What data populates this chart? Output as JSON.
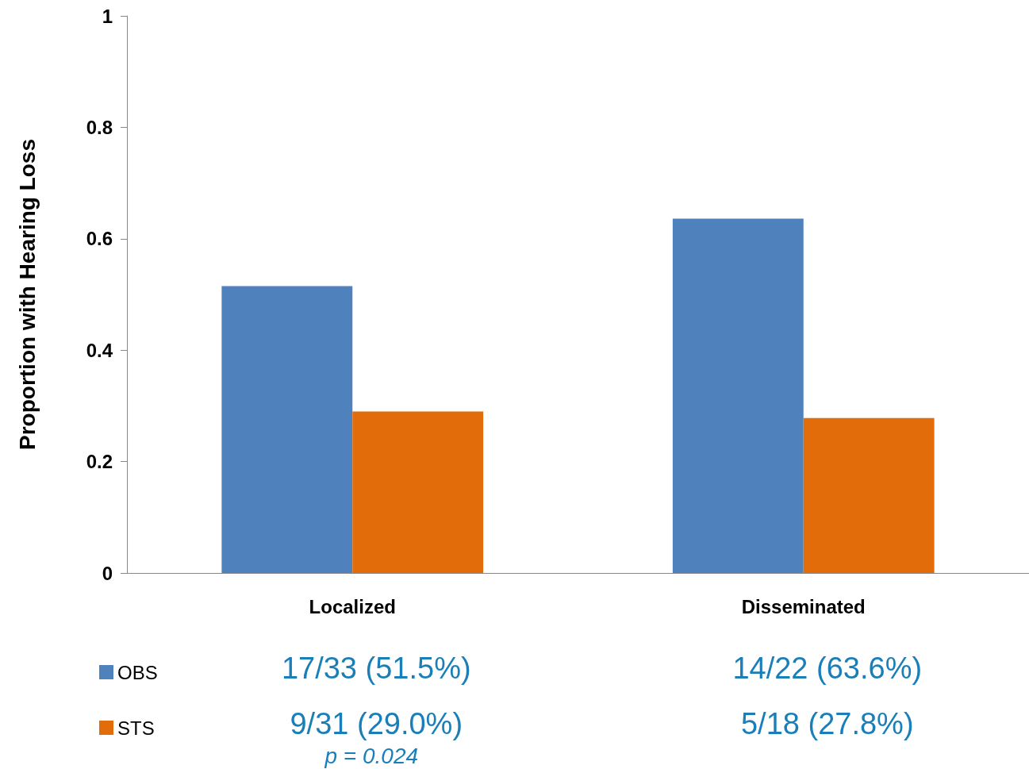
{
  "chart_data": {
    "type": "bar",
    "ylabel": "Proportion with Hearing Loss",
    "categories": [
      "Localized",
      "Disseminated"
    ],
    "series": [
      {
        "name": "OBS",
        "color": "#4f81bd",
        "values": [
          0.515,
          0.636
        ],
        "value_labels": [
          "17/33 (51.5%)",
          "14/22 (63.6%)"
        ]
      },
      {
        "name": "STS",
        "color": "#e36c0a",
        "values": [
          0.29,
          0.278
        ],
        "value_labels": [
          "9/31 (29.0%)",
          "5/18 (27.8%)"
        ]
      }
    ],
    "ylim": [
      0,
      1
    ],
    "yticks": [
      0,
      0.2,
      0.4,
      0.6,
      0.8,
      1
    ],
    "grid": false,
    "legend": "bottom left",
    "annotations": [
      "p = 0.024"
    ]
  }
}
